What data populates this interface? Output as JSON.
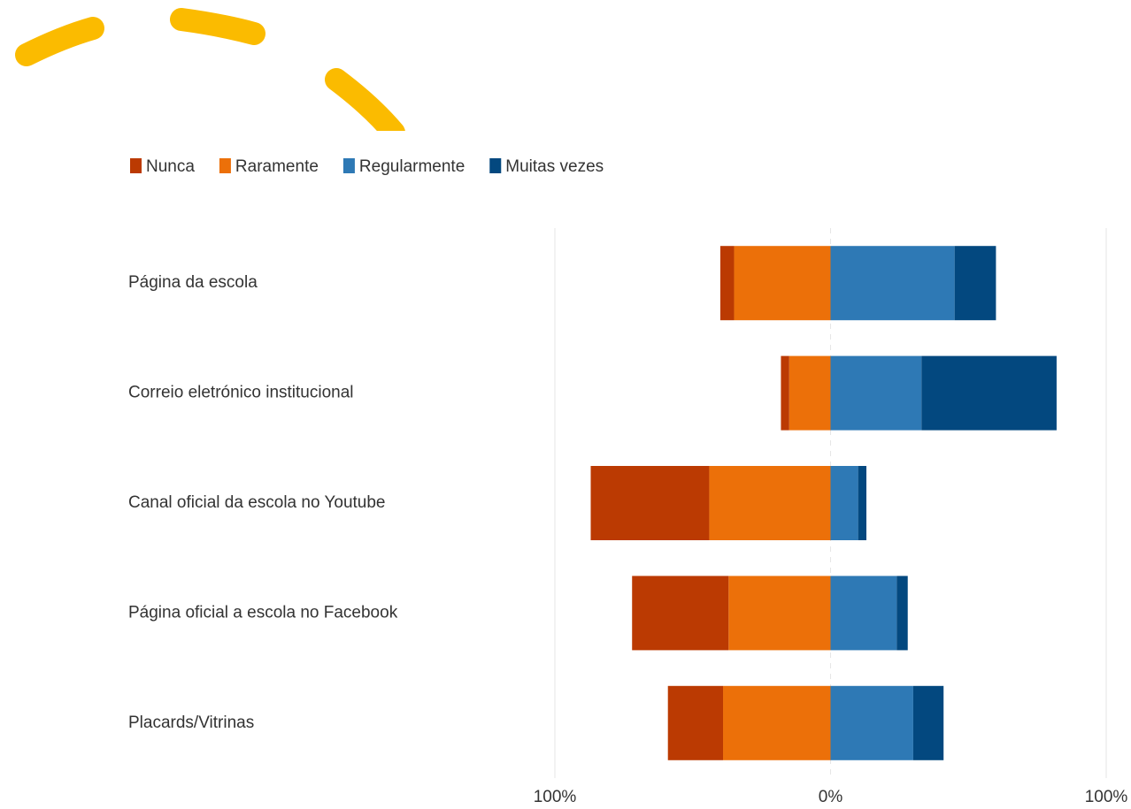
{
  "chart_data": {
    "type": "diverging-bar",
    "categories": [
      "Página da escola",
      "Correio eletrónico institucional",
      "Canal oficial da escola no Youtube",
      "Página oficial a escola no Facebook",
      "Placards/Vitrinas"
    ],
    "series": [
      {
        "name": "Nunca",
        "color": "#bb3a02",
        "values": [
          -5,
          -3,
          -43,
          -35,
          -20
        ]
      },
      {
        "name": "Raramente",
        "color": "#ec7009",
        "values": [
          -35,
          -15,
          -44,
          -37,
          -39
        ]
      },
      {
        "name": "Regularmente",
        "color": "#2e79b5",
        "values": [
          45,
          33,
          10,
          24,
          30
        ]
      },
      {
        "name": "Muitas vezes",
        "color": "#03487f",
        "values": [
          15,
          49,
          3,
          4,
          11
        ]
      }
    ],
    "xlim": [
      -100,
      100
    ],
    "xticks": [
      {
        "value": -100,
        "label": "100%"
      },
      {
        "value": 0,
        "label": "0%"
      },
      {
        "value": 100,
        "label": "100%"
      }
    ],
    "grid": true
  }
}
